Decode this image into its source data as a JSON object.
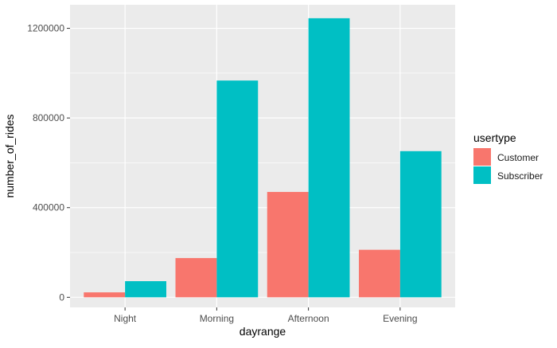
{
  "chart_data": {
    "type": "bar",
    "xlabel": "dayrange",
    "ylabel": "number_of_rides",
    "categories": [
      "Night",
      "Morning",
      "Afternoon",
      "Evening"
    ],
    "series": [
      {
        "name": "Customer",
        "color": "#F8766D",
        "values": [
          22000,
          175000,
          470000,
          212000
        ]
      },
      {
        "name": "Subscriber",
        "color": "#00BFC4",
        "values": [
          72000,
          967000,
          1245000,
          652000
        ]
      }
    ],
    "ylim": [
      -45000,
      1305000
    ],
    "yticks": [
      0,
      400000,
      800000,
      1200000
    ],
    "ytick_labels": [
      "0",
      "400000",
      "800000",
      "1200000"
    ],
    "legend": {
      "title": "usertype",
      "position": "right"
    },
    "grid": true,
    "panel_background": "#EBEBEB",
    "grid_color": "#FFFFFF"
  }
}
